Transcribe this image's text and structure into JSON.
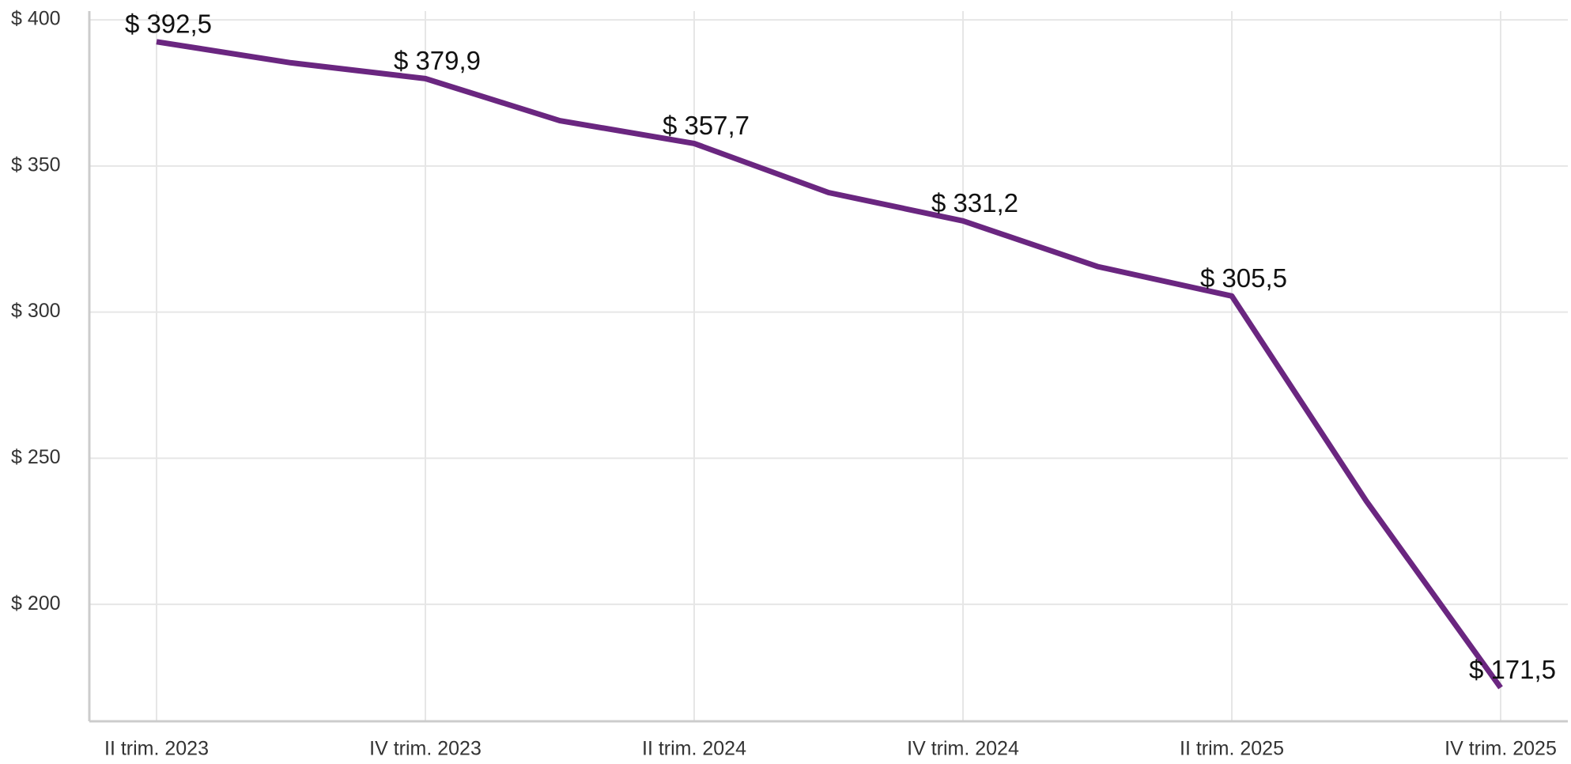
{
  "chart_data": {
    "type": "line",
    "categories": [
      "II trim. 2023",
      null,
      "IV trim. 2023",
      null,
      "II trim. 2024",
      null,
      "IV trim. 2024",
      null,
      "II trim. 2025",
      null,
      "IV trim. 2025"
    ],
    "series": [
      {
        "color": "#6a2680",
        "values": [
          392.5,
          385.3,
          379.9,
          365.5,
          357.7,
          340.9,
          331.2,
          315.6,
          305.5,
          235.4,
          171.5
        ],
        "value_labels": [
          "$ 392,5",
          null,
          "$ 379,9",
          null,
          "$ 357,7",
          null,
          "$ 331,2",
          null,
          "$ 305,5",
          null,
          "$ 171,5"
        ]
      }
    ],
    "ylim": [
      160,
      403
    ],
    "yticks": [
      {
        "value": 200,
        "label": "$ 200"
      },
      {
        "value": 250,
        "label": "$ 250"
      },
      {
        "value": 300,
        "label": "$ 300"
      },
      {
        "value": 350,
        "label": "$ 350"
      },
      {
        "value": 400,
        "label": "$ 400"
      }
    ],
    "grid": true
  }
}
